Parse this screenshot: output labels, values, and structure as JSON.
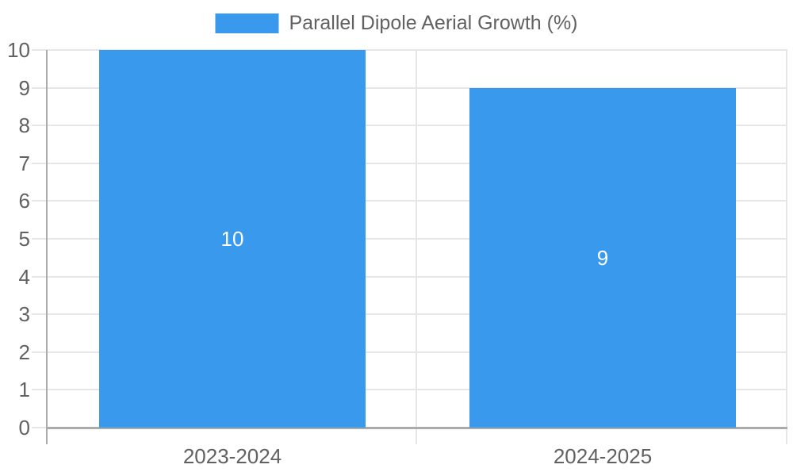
{
  "chart_data": {
    "type": "bar",
    "title": "",
    "legend_label": "Parallel Dipole Aerial Growth (%)",
    "legend_position": "top",
    "categories": [
      "2023-2024",
      "2024-2025"
    ],
    "values": [
      10,
      9
    ],
    "value_labels": [
      "10",
      "9"
    ],
    "xlabel": "",
    "ylabel": "",
    "ylim": [
      0,
      10
    ],
    "ytick_step": 1,
    "ytick_labels": [
      "0",
      "1",
      "2",
      "3",
      "4",
      "5",
      "6",
      "7",
      "8",
      "9",
      "10"
    ],
    "grid": true,
    "colors": {
      "bar": "#3999ec",
      "grid_line": "#e6e6e6",
      "axis_line": "#ababab",
      "tick_text": "#616161",
      "legend_text": "#616161",
      "value_label_text": "#ffffff",
      "background": "#ffffff"
    }
  }
}
